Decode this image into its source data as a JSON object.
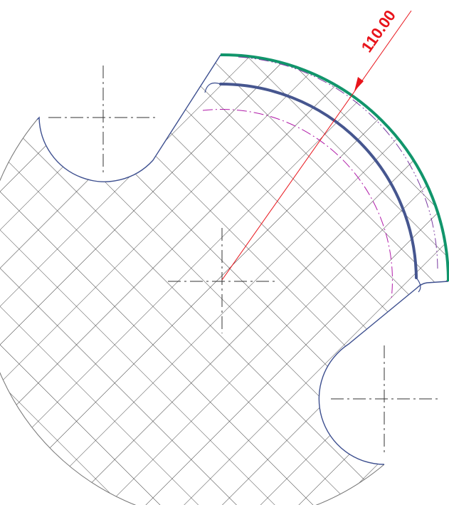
{
  "dimension": {
    "label": "110.00"
  }
}
